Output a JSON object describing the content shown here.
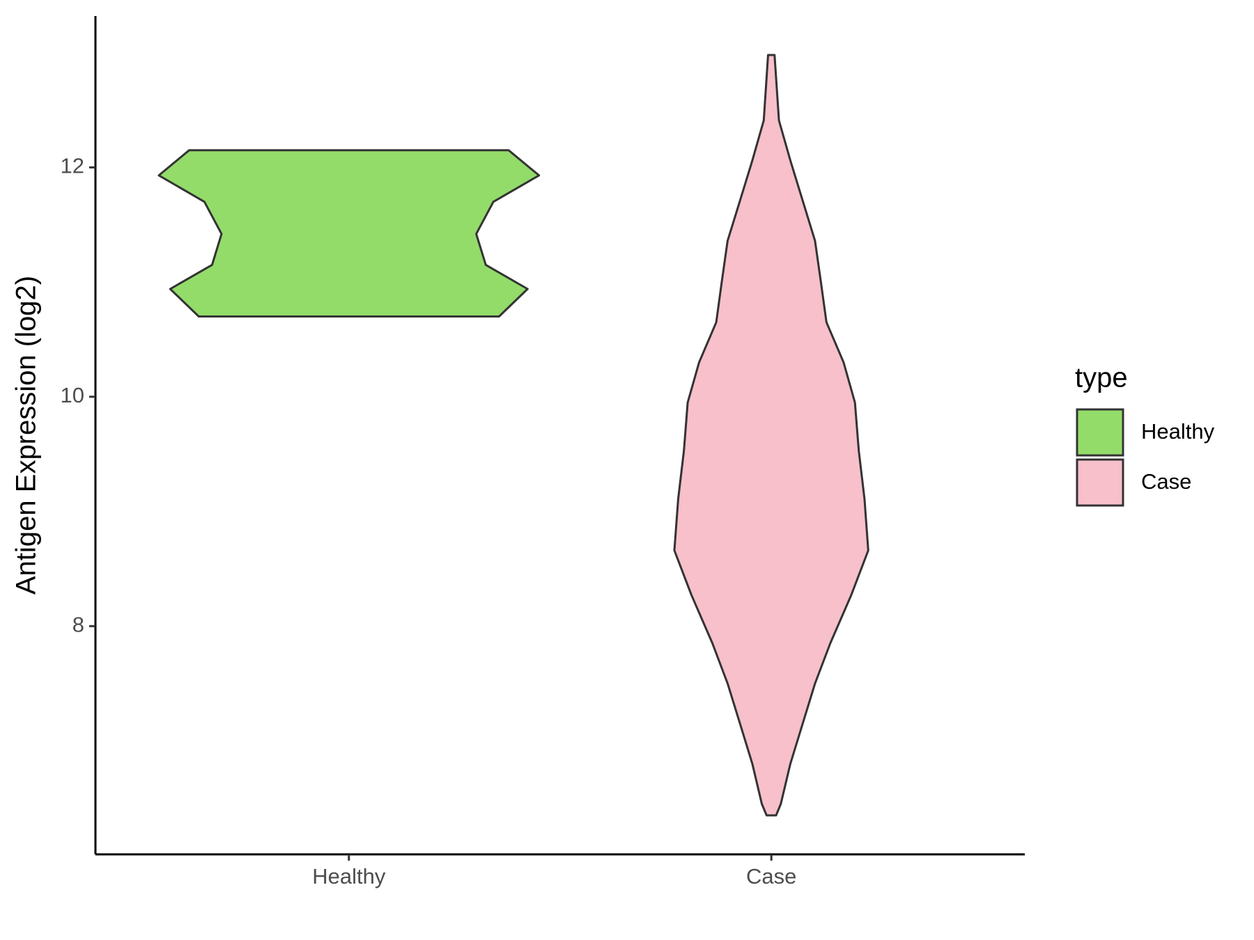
{
  "chart_data": {
    "type": "violin",
    "y_axis_label": "Antigen Expression (log2)",
    "categories": [
      "Healthy",
      "Case"
    ],
    "legend_title": "type",
    "legend": "right",
    "series": [
      {
        "name": "Healthy",
        "color": "#93dc6a",
        "y": [
          12.15,
          11.93,
          11.7,
          11.42,
          11.15,
          10.94,
          10.7
        ],
        "width": [
          0.84,
          1.0,
          0.76,
          0.67,
          0.72,
          0.94,
          0.79
        ]
      },
      {
        "name": "Case",
        "color": "#f7c0cb",
        "y": [
          12.98,
          12.41,
          12.06,
          11.71,
          11.36,
          11.01,
          10.65,
          10.3,
          9.95,
          9.53,
          9.11,
          8.66,
          8.27,
          7.85,
          7.5,
          7.15,
          6.8,
          6.45,
          6.35
        ],
        "width": [
          0.017,
          0.04,
          0.1,
          0.165,
          0.23,
          0.26,
          0.29,
          0.38,
          0.44,
          0.46,
          0.49,
          0.51,
          0.42,
          0.31,
          0.23,
          0.165,
          0.1,
          0.05,
          0.025
        ]
      }
    ],
    "ylim": [
      6.01,
      13.32
    ],
    "yticks": [
      8,
      10,
      12
    ]
  }
}
